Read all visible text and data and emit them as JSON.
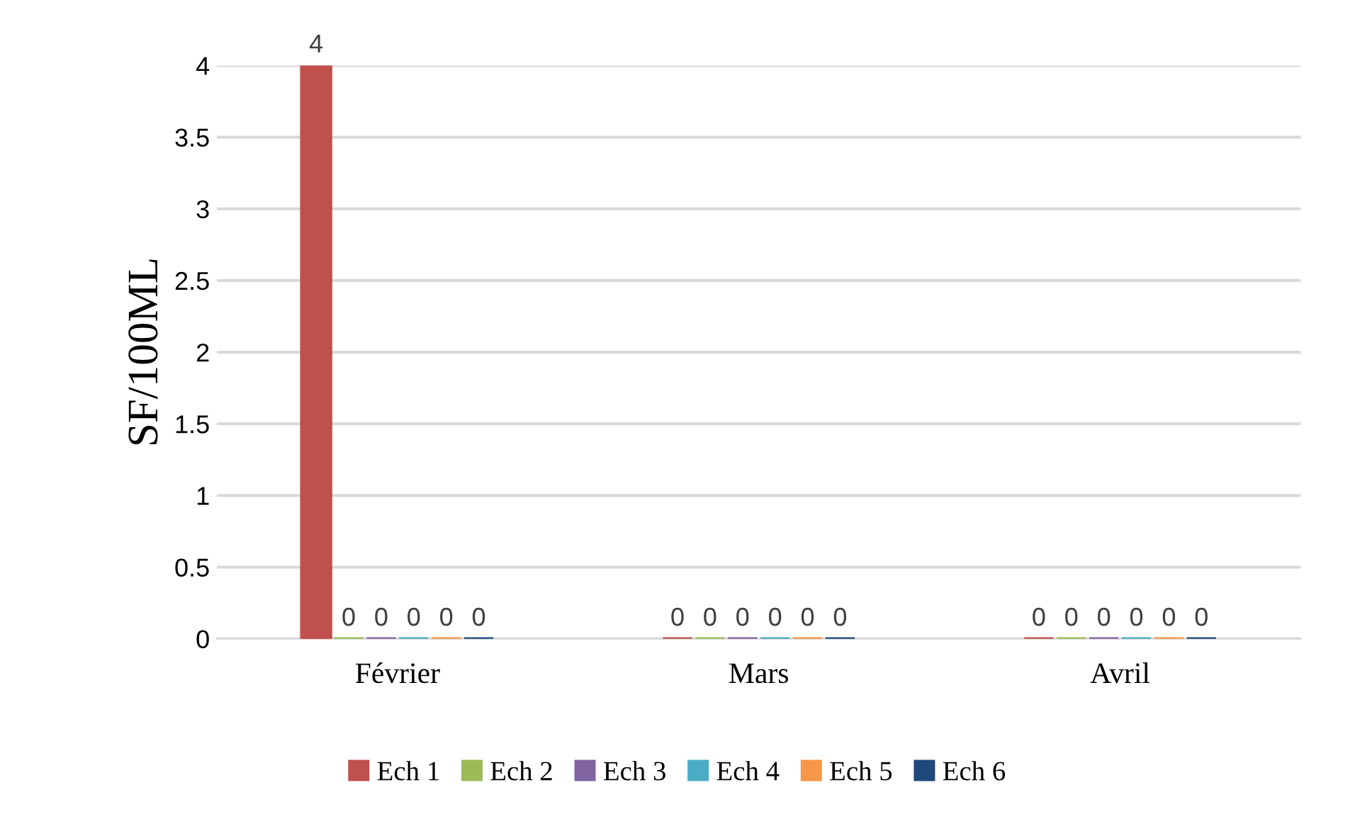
{
  "chart_data": {
    "type": "bar",
    "ylabel": "SF/100ML",
    "categories": [
      "Février",
      "Mars",
      "Avril"
    ],
    "series": [
      {
        "name": "Ech 1",
        "color": "#c0504d",
        "values": [
          4,
          0,
          0
        ]
      },
      {
        "name": "Ech 2",
        "color": "#9bbb59",
        "values": [
          0,
          0,
          0
        ]
      },
      {
        "name": "Ech 3",
        "color": "#8064a2",
        "values": [
          0,
          0,
          0
        ]
      },
      {
        "name": "Ech 4",
        "color": "#4bacc6",
        "values": [
          0,
          0,
          0
        ]
      },
      {
        "name": "Ech 5",
        "color": "#f79646",
        "values": [
          0,
          0,
          0
        ]
      },
      {
        "name": "Ech 6",
        "color": "#1f497d",
        "values": [
          0,
          0,
          0
        ]
      }
    ],
    "ylim": [
      0,
      4
    ],
    "yticks": [
      0,
      0.5,
      1,
      1.5,
      2,
      2.5,
      3,
      3.5,
      4
    ],
    "grid": "y",
    "legend": "bottom",
    "data_labels": true
  }
}
